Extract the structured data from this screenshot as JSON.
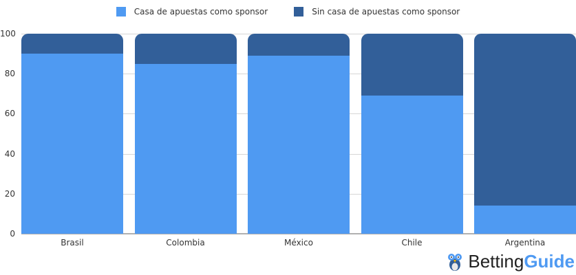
{
  "chart_data": {
    "type": "bar",
    "stacked": true,
    "categories": [
      "Brasil",
      "Colombia",
      "México",
      "Chile",
      "Argentina"
    ],
    "series": [
      {
        "name": "Casa de apuestas como sponsor",
        "color": "#4f9af2",
        "values": [
          90,
          85,
          89,
          69,
          14
        ]
      },
      {
        "name": "Sin casa de apuestas como sponsor",
        "color": "#325f99",
        "values": [
          10,
          15,
          11,
          31,
          86
        ]
      }
    ],
    "title": "",
    "xlabel": "",
    "ylabel": "",
    "ylim": [
      0,
      100
    ],
    "yticks": [
      0,
      20,
      40,
      60,
      80,
      100
    ],
    "grid": true,
    "legend_position": "top"
  },
  "legend": {
    "items": [
      {
        "label": "Casa de apuestas como sponsor",
        "color": "#4f9af2"
      },
      {
        "label": "Sin casa de apuestas como sponsor",
        "color": "#325f99"
      }
    ]
  },
  "yaxis": {
    "ticks": [
      "0",
      "20",
      "40",
      "60",
      "80",
      "100"
    ]
  },
  "brand": {
    "part1": "Betting",
    "part2": "Guide",
    "icon": "owl-icon"
  }
}
